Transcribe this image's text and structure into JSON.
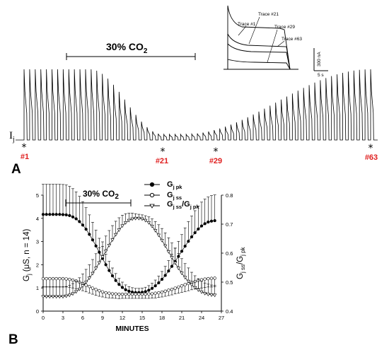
{
  "panel_a": {
    "letter": "A",
    "co2_label": "30% CO",
    "co2_sub": "2",
    "current_label": "I",
    "current_sub": "j",
    "markers": [
      {
        "trace": 1,
        "label": "#1"
      },
      {
        "trace": 21,
        "label": "#21"
      },
      {
        "trace": 29,
        "label": "#29"
      },
      {
        "trace": 63,
        "label": "#63"
      }
    ],
    "inset": {
      "traces": [
        "Trace #1",
        "Trace #21",
        "Trace #29",
        "Trace #63"
      ],
      "scale_current": "300 nA",
      "scale_time": "5 s"
    }
  },
  "panel_b": {
    "letter": "B",
    "co2_label": "30% CO",
    "co2_sub": "2"
  },
  "colors": {
    "marker_labels": "#e02020",
    "ink": "#000000"
  },
  "chart_data": {
    "type": "line",
    "xlabel": "MINUTES",
    "xlim": [
      0,
      27
    ],
    "xticks": [
      0,
      3,
      6,
      9,
      12,
      15,
      18,
      21,
      24,
      27
    ],
    "y_left": {
      "label_main": "G",
      "label_sub": "j",
      "label_units": "(μS, n = 14)",
      "lim": [
        0,
        5
      ],
      "ticks": [
        0,
        1,
        2,
        3,
        4,
        5
      ]
    },
    "y_right": {
      "label_main": "G",
      "label_sub": "j ss",
      "label_div": "/G",
      "label_sub2": "j pk",
      "lim": [
        0.4,
        0.8
      ],
      "ticks": [
        0.4,
        0.5,
        0.6,
        0.7,
        0.8
      ]
    },
    "co2_interval_minutes": [
      3.5,
      13.5
    ],
    "x": [
      0,
      0.5,
      1,
      1.5,
      2,
      2.5,
      3,
      3.5,
      4,
      4.5,
      5,
      5.5,
      6,
      6.5,
      7,
      7.5,
      8,
      8.5,
      9,
      9.5,
      10,
      10.5,
      11,
      11.5,
      12,
      12.5,
      13,
      13.5,
      14,
      14.5,
      15,
      15.5,
      16,
      16.5,
      17,
      17.5,
      18,
      18.5,
      19,
      19.5,
      20,
      20.5,
      21,
      21.5,
      22,
      22.5,
      23,
      23.5,
      24,
      24.5,
      25,
      25.5,
      26
    ],
    "series": [
      {
        "name": "G",
        "name_sub": "j pk",
        "marker": "filled-circle",
        "axis": "left",
        "values": [
          4.17,
          4.17,
          4.17,
          4.17,
          4.17,
          4.17,
          4.16,
          4.15,
          4.12,
          4.06,
          3.98,
          3.86,
          3.71,
          3.53,
          3.31,
          3.07,
          2.81,
          2.54,
          2.27,
          2.0,
          1.75,
          1.52,
          1.32,
          1.15,
          1.02,
          0.92,
          0.86,
          0.82,
          0.8,
          0.8,
          0.81,
          0.84,
          0.9,
          0.98,
          1.09,
          1.22,
          1.37,
          1.54,
          1.73,
          1.93,
          2.14,
          2.36,
          2.58,
          2.8,
          3.01,
          3.2,
          3.38,
          3.54,
          3.67,
          3.77,
          3.84,
          3.88,
          3.9
        ],
        "err": [
          1.3,
          1.3,
          1.3,
          1.3,
          1.3,
          1.3,
          1.3,
          1.29,
          1.26,
          1.22,
          1.16,
          1.09,
          1.01,
          0.93,
          0.84,
          0.76,
          0.68,
          0.6,
          0.52,
          0.46,
          0.4,
          0.34,
          0.3,
          0.26,
          0.23,
          0.21,
          0.2,
          0.19,
          0.18,
          0.18,
          0.18,
          0.19,
          0.2,
          0.22,
          0.25,
          0.29,
          0.34,
          0.39,
          0.45,
          0.52,
          0.58,
          0.65,
          0.72,
          0.79,
          0.85,
          0.9,
          0.95,
          0.99,
          1.03,
          1.06,
          1.08,
          1.1,
          1.11
        ]
      },
      {
        "name": "G",
        "name_sub": "j ss",
        "marker": "open-circle",
        "axis": "left",
        "values": [
          1.4,
          1.4,
          1.4,
          1.4,
          1.4,
          1.4,
          1.4,
          1.39,
          1.37,
          1.34,
          1.3,
          1.25,
          1.19,
          1.12,
          1.06,
          0.99,
          0.93,
          0.88,
          0.83,
          0.79,
          0.77,
          0.75,
          0.74,
          0.73,
          0.73,
          0.73,
          0.73,
          0.73,
          0.73,
          0.73,
          0.73,
          0.73,
          0.74,
          0.75,
          0.77,
          0.79,
          0.82,
          0.86,
          0.9,
          0.94,
          0.99,
          1.04,
          1.09,
          1.14,
          1.19,
          1.24,
          1.28,
          1.32,
          1.35,
          1.38,
          1.4,
          1.41,
          1.42
        ],
        "err": [
          0.35,
          0.35,
          0.35,
          0.35,
          0.35,
          0.35,
          0.35,
          0.35,
          0.34,
          0.34,
          0.33,
          0.32,
          0.31,
          0.29,
          0.28,
          0.26,
          0.25,
          0.24,
          0.22,
          0.21,
          0.2,
          0.19,
          0.19,
          0.19,
          0.18,
          0.18,
          0.18,
          0.18,
          0.18,
          0.18,
          0.18,
          0.18,
          0.19,
          0.19,
          0.2,
          0.2,
          0.21,
          0.22,
          0.23,
          0.24,
          0.25,
          0.27,
          0.28,
          0.3,
          0.31,
          0.32,
          0.33,
          0.34,
          0.35,
          0.36,
          0.36,
          0.37,
          0.37
        ]
      },
      {
        "name": "G",
        "name_sub": "j ss",
        "name_div": "/G",
        "name_sub2": "j pk",
        "marker": "open-triangle-down",
        "axis": "right",
        "values": [
          0.45,
          0.45,
          0.45,
          0.45,
          0.45,
          0.45,
          0.45,
          0.452,
          0.455,
          0.46,
          0.467,
          0.476,
          0.487,
          0.5,
          0.514,
          0.53,
          0.548,
          0.567,
          0.587,
          0.607,
          0.627,
          0.646,
          0.664,
          0.68,
          0.694,
          0.705,
          0.713,
          0.718,
          0.72,
          0.72,
          0.718,
          0.713,
          0.705,
          0.693,
          0.678,
          0.662,
          0.644,
          0.625,
          0.605,
          0.585,
          0.566,
          0.548,
          0.531,
          0.516,
          0.503,
          0.491,
          0.481,
          0.473,
          0.466,
          0.461,
          0.458,
          0.456,
          0.455
        ],
        "err": [
          0.033,
          0.033,
          0.033,
          0.033,
          0.033,
          0.033,
          0.033,
          0.033,
          0.034,
          0.035,
          0.037,
          0.039,
          0.041,
          0.044,
          0.046,
          0.048,
          0.05,
          0.051,
          0.052,
          0.052,
          0.051,
          0.049,
          0.046,
          0.042,
          0.037,
          0.031,
          0.025,
          0.02,
          0.016,
          0.014,
          0.014,
          0.016,
          0.02,
          0.025,
          0.031,
          0.036,
          0.041,
          0.045,
          0.048,
          0.05,
          0.051,
          0.051,
          0.05,
          0.048,
          0.046,
          0.043,
          0.041,
          0.039,
          0.037,
          0.036,
          0.035,
          0.034,
          0.034
        ]
      }
    ]
  }
}
